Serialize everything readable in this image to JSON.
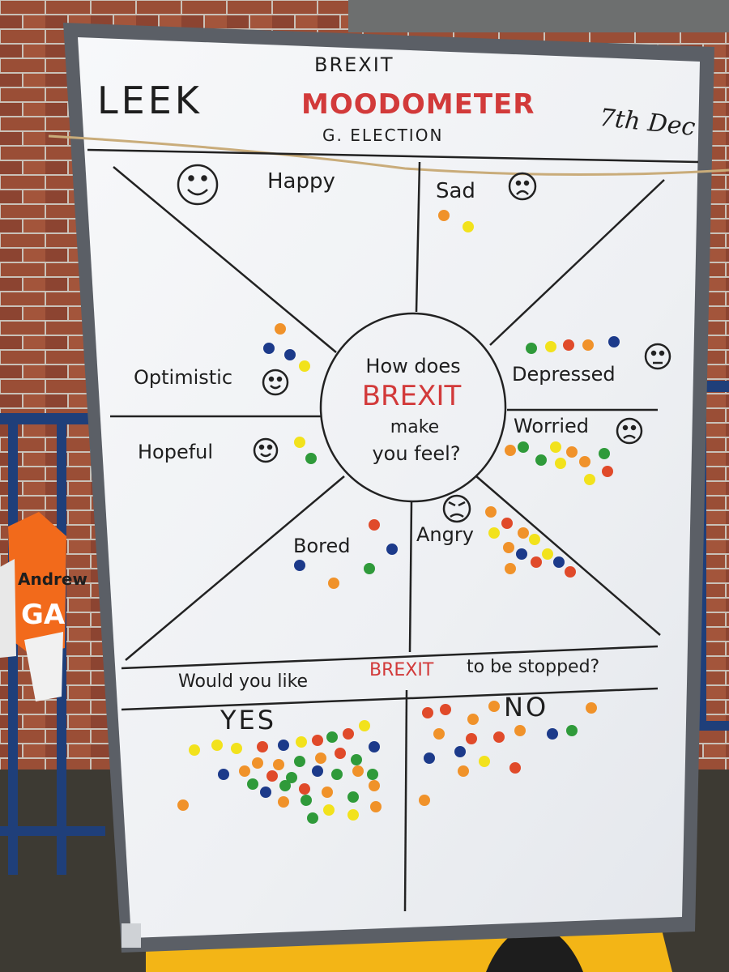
{
  "board": {
    "title_left": "LEEK",
    "title_top": "BREXIT",
    "title_main": "MOODOMETER",
    "title_sub": "G. ELECTION",
    "date": "7th Dec",
    "center_line1": "How does",
    "center_line2": "BREXIT",
    "center_line3": "make",
    "center_line4": "you feel?",
    "moods": {
      "happy": "Happy",
      "sad": "Sad",
      "optimistic": "Optimistic",
      "depressed": "Depressed",
      "hopeful": "Hopeful",
      "worried": "Worried",
      "bored": "Bored",
      "angry": "Angry"
    },
    "question_pre": "Would you like",
    "question_brexit": "BREXIT",
    "question_post": "to be stopped?",
    "yes": "YES",
    "no": "NO"
  },
  "sign": {
    "line1": "Andrew",
    "line2": "GA"
  },
  "colors": {
    "orange": "#f0922a",
    "yellow": "#f2e21c",
    "blue": "#1c3a8a",
    "green": "#2f9a3a",
    "red": "#e04a2a",
    "marker_red": "#d23a3a",
    "brick": "#8a4a34",
    "railing": "#1f3f7a",
    "frame": "#5b5f66"
  }
}
